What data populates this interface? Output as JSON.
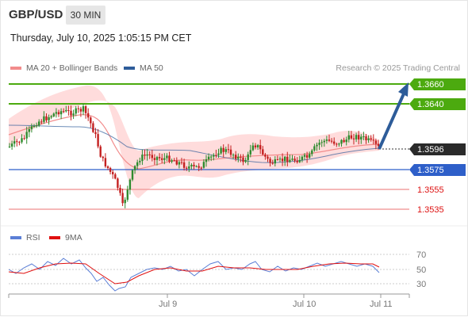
{
  "header": {
    "symbol": "GBP/USD",
    "timeframe": "30 MIN",
    "datetime": "Thursday, July 10, 2025 1:05:15 PM CET"
  },
  "legend": {
    "ma20_label": "MA 20 + Bollinger Bands",
    "ma50_label": "MA 50",
    "ma20_color": "#f28c8c",
    "ma50_color": "#2e5c9a",
    "copyright": "Research © 2025 Trading Central"
  },
  "levels": [
    {
      "value": "1.3660",
      "kind": "resistance"
    },
    {
      "value": "1.3640",
      "kind": "resistance"
    },
    {
      "value": "1.3596",
      "kind": "current"
    },
    {
      "value": "1.3575",
      "kind": "support"
    },
    {
      "value": "1.3555",
      "kind": "support-light"
    },
    {
      "value": "1.3535",
      "kind": "support-light"
    }
  ],
  "rsi": {
    "label": "RSI",
    "ma_label": "9MA",
    "rsi_color": "#5b7fd6",
    "ma_color": "#e01010",
    "ticks": [
      "70",
      "50",
      "30"
    ]
  },
  "xaxis": {
    "labels": [
      "Jul 9",
      "Jul 10",
      "Jul 11"
    ]
  },
  "colors": {
    "up": "#2e8b2e",
    "down": "#c42020",
    "band": "#ffd6d6",
    "resistance": "#4caa0f",
    "support": "#2e5fc9",
    "support_light": "#f2a0a0",
    "arrow": "#2d5c99"
  }
}
